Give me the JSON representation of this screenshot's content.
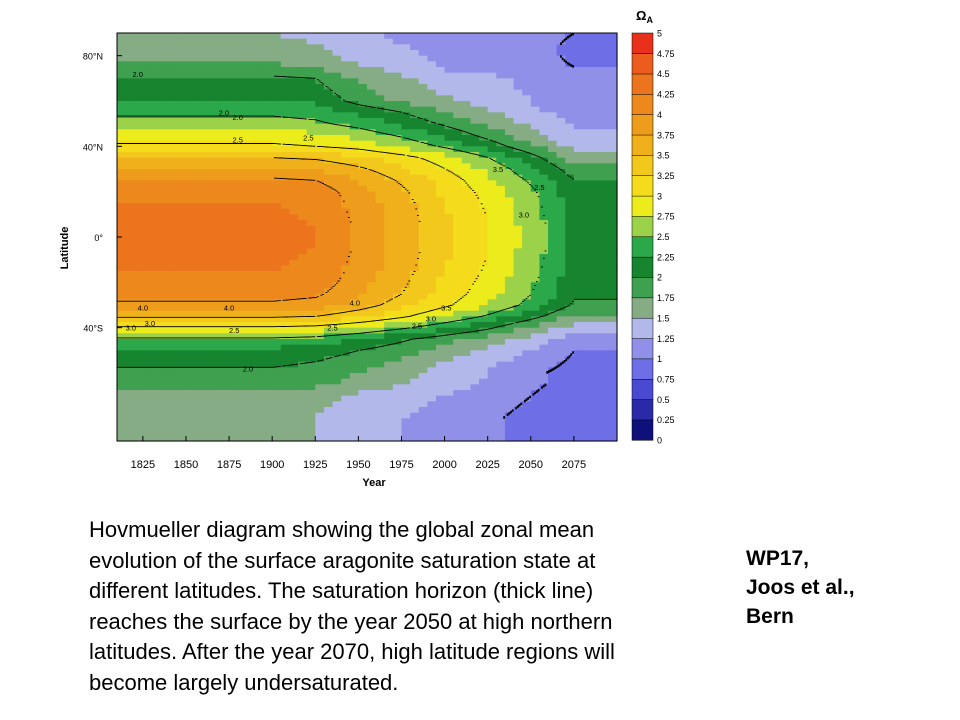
{
  "chart_data": {
    "type": "heatmap",
    "title": "",
    "xlabel": "Year",
    "ylabel": "Latitude",
    "xlim": [
      1810,
      2100
    ],
    "ylim": [
      -90,
      90
    ],
    "x_ticks": [
      1825,
      1850,
      1875,
      1900,
      1925,
      1950,
      1975,
      2000,
      2025,
      2050,
      2075
    ],
    "y_ticks": [
      {
        "value": 80,
        "label": "80°N"
      },
      {
        "value": 40,
        "label": "40°N"
      },
      {
        "value": 0,
        "label": "0°"
      },
      {
        "value": -40,
        "label": "40°S"
      }
    ],
    "colorbar": {
      "title": "Ω",
      "subscript": "A",
      "levels": [
        0,
        0.25,
        0.5,
        0.75,
        1,
        1.25,
        1.5,
        1.75,
        2,
        2.25,
        2.5,
        2.75,
        3,
        3.25,
        3.5,
        3.75,
        4,
        4.25,
        4.5,
        4.75,
        5
      ],
      "level_labels": [
        "0",
        "0.25",
        "0.5",
        "0.75",
        "1",
        "1.25",
        "1.5",
        "1.75",
        "2",
        "2.25",
        "2.5",
        "2.75",
        "3",
        "3.25",
        "3.5",
        "3.75",
        "4",
        "4.25",
        "4.5",
        "4.75",
        "5"
      ],
      "colors": [
        "#10107a",
        "#2a2aa8",
        "#4a4ad0",
        "#6e6ee6",
        "#9090e8",
        "#b2b8ea",
        "#86ac86",
        "#3fa04f",
        "#17852f",
        "#2aa84a",
        "#9bd24a",
        "#ecec1c",
        "#f4dc1c",
        "#f2c81c",
        "#f0b01c",
        "#ee9c1c",
        "#ec881c",
        "#ec741c",
        "#ec5c1c",
        "#e8301c"
      ]
    },
    "latitudes": [
      90,
      85,
      80,
      75,
      70,
      65,
      60,
      55,
      50,
      45,
      40,
      35,
      30,
      25,
      20,
      15,
      10,
      5,
      0,
      -5,
      -10,
      -15,
      -20,
      -25,
      -30,
      -35,
      -40,
      -45,
      -50,
      -55,
      -60,
      -65,
      -70,
      -75,
      -80,
      -85,
      -90
    ],
    "profile_labels": [
      "2.0",
      "2.5",
      "3.0",
      "3.5",
      "4.0"
    ],
    "profile_by_latitude": [
      [
        1.5,
        1.5,
        1.5,
        1.5,
        1.5,
        1.45,
        1.3,
        1.2,
        1.2,
        1.2,
        1.2,
        1.0
      ],
      [
        1.55,
        1.55,
        1.55,
        1.55,
        1.55,
        1.5,
        1.35,
        1.25,
        1.2,
        1.2,
        1.2,
        0.9
      ],
      [
        1.65,
        1.65,
        1.65,
        1.65,
        1.65,
        1.6,
        1.4,
        1.3,
        1.2,
        1.2,
        1.2,
        0.9
      ],
      [
        1.8,
        1.8,
        1.8,
        1.8,
        1.8,
        1.75,
        1.55,
        1.4,
        1.2,
        1.2,
        1.15,
        1.0
      ],
      [
        2.05,
        2.05,
        2.05,
        2.05,
        2.05,
        2.0,
        1.7,
        1.55,
        1.4,
        1.3,
        1.2,
        1.05
      ],
      [
        2.15,
        2.15,
        2.15,
        2.15,
        2.15,
        2.1,
        1.8,
        1.6,
        1.45,
        1.35,
        1.2,
        1.05
      ],
      [
        2.25,
        2.25,
        2.25,
        2.25,
        2.25,
        2.2,
        1.9,
        1.7,
        1.55,
        1.4,
        1.25,
        1.05
      ],
      [
        2.45,
        2.45,
        2.45,
        2.45,
        2.45,
        2.4,
        2.2,
        2.0,
        1.75,
        1.55,
        1.3,
        1.15
      ],
      [
        2.6,
        2.6,
        2.6,
        2.6,
        2.6,
        2.55,
        2.4,
        2.2,
        1.95,
        1.7,
        1.45,
        1.2
      ],
      [
        2.85,
        2.85,
        2.85,
        2.85,
        2.85,
        2.8,
        2.65,
        2.45,
        2.2,
        1.9,
        1.6,
        1.3
      ],
      [
        3.05,
        3.05,
        3.05,
        3.05,
        3.05,
        3.0,
        2.9,
        2.7,
        2.45,
        2.15,
        1.8,
        1.4
      ],
      [
        3.5,
        3.5,
        3.5,
        3.5,
        3.5,
        3.45,
        3.3,
        3.1,
        2.85,
        2.5,
        2.1,
        1.65
      ],
      [
        3.8,
        3.8,
        3.8,
        3.8,
        3.8,
        3.75,
        3.55,
        3.3,
        3.0,
        2.7,
        2.3,
        1.85
      ],
      [
        4.05,
        4.05,
        4.05,
        4.05,
        4.05,
        4.0,
        3.75,
        3.45,
        3.15,
        2.8,
        2.45,
        2.0
      ],
      [
        4.2,
        4.2,
        4.2,
        4.2,
        4.2,
        4.15,
        3.85,
        3.55,
        3.2,
        2.9,
        2.55,
        2.1
      ],
      [
        4.25,
        4.25,
        4.25,
        4.25,
        4.25,
        4.2,
        3.9,
        3.6,
        3.25,
        2.95,
        2.6,
        2.15
      ],
      [
        4.28,
        4.28,
        4.28,
        4.28,
        4.28,
        4.22,
        3.92,
        3.62,
        3.28,
        2.98,
        2.62,
        2.18
      ],
      [
        4.3,
        4.3,
        4.3,
        4.3,
        4.3,
        4.25,
        3.95,
        3.65,
        3.3,
        3.0,
        2.65,
        2.2
      ],
      [
        4.3,
        4.3,
        4.3,
        4.3,
        4.3,
        4.25,
        3.95,
        3.65,
        3.3,
        3.0,
        2.65,
        2.2
      ],
      [
        4.3,
        4.3,
        4.3,
        4.3,
        4.3,
        4.25,
        3.95,
        3.65,
        3.3,
        3.0,
        2.65,
        2.2
      ],
      [
        4.28,
        4.28,
        4.28,
        4.28,
        4.28,
        4.22,
        3.92,
        3.62,
        3.28,
        2.98,
        2.62,
        2.18
      ],
      [
        4.25,
        4.25,
        4.25,
        4.25,
        4.25,
        4.2,
        3.9,
        3.6,
        3.25,
        2.95,
        2.6,
        2.15
      ],
      [
        4.2,
        4.2,
        4.2,
        4.2,
        4.2,
        4.15,
        3.85,
        3.55,
        3.2,
        2.9,
        2.55,
        2.1
      ],
      [
        4.1,
        4.1,
        4.1,
        4.1,
        4.1,
        4.05,
        3.8,
        3.5,
        3.15,
        2.85,
        2.5,
        2.05
      ],
      [
        3.95,
        3.95,
        3.95,
        3.95,
        3.95,
        3.9,
        3.65,
        3.35,
        3.05,
        2.75,
        2.4,
        1.95
      ],
      [
        3.55,
        3.55,
        3.55,
        3.55,
        3.55,
        3.5,
        3.3,
        3.05,
        2.75,
        2.45,
        2.1,
        1.7
      ],
      [
        2.95,
        2.95,
        2.95,
        2.95,
        2.95,
        2.9,
        2.75,
        2.55,
        2.3,
        2.05,
        1.7,
        1.4
      ],
      [
        2.45,
        2.45,
        2.45,
        2.45,
        2.45,
        2.4,
        2.25,
        2.05,
        1.85,
        1.65,
        1.4,
        1.15
      ],
      [
        2.2,
        2.2,
        2.2,
        2.2,
        2.2,
        2.15,
        2.0,
        1.85,
        1.65,
        1.45,
        1.25,
        1.0
      ],
      [
        2.05,
        2.05,
        2.05,
        2.05,
        2.05,
        2.0,
        1.85,
        1.7,
        1.5,
        1.3,
        1.15,
        0.95
      ],
      [
        1.95,
        1.95,
        1.95,
        1.95,
        1.95,
        1.9,
        1.75,
        1.6,
        1.4,
        1.25,
        1.05,
        0.9
      ],
      [
        1.85,
        1.85,
        1.85,
        1.85,
        1.85,
        1.8,
        1.65,
        1.5,
        1.35,
        1.2,
        1.05,
        0.9
      ],
      [
        1.65,
        1.65,
        1.65,
        1.65,
        1.65,
        1.6,
        1.45,
        1.35,
        1.25,
        1.15,
        1.0,
        0.85
      ],
      [
        1.6,
        1.6,
        1.6,
        1.6,
        1.6,
        1.55,
        1.4,
        1.3,
        1.2,
        1.1,
        0.95,
        0.8
      ],
      [
        1.55,
        1.55,
        1.55,
        1.55,
        1.55,
        1.5,
        1.35,
        1.25,
        1.15,
        1.05,
        0.9,
        0.75
      ],
      [
        1.55,
        1.55,
        1.55,
        1.55,
        1.55,
        1.5,
        1.35,
        1.25,
        1.15,
        1.05,
        0.9,
        0.75
      ],
      [
        1.55,
        1.55,
        1.55,
        1.55,
        1.55,
        1.5,
        1.35,
        1.25,
        1.15,
        1.05,
        0.9,
        0.75
      ]
    ],
    "profile_years": [
      1810,
      1825,
      1850,
      1875,
      1900,
      1925,
      1950,
      1975,
      2000,
      2025,
      2050,
      2075
    ],
    "contour_labels": [
      {
        "text": "2.0",
        "x": 1822,
        "y": 72
      },
      {
        "text": "2.0",
        "x": 1872,
        "y": 55
      },
      {
        "text": "2.0",
        "x": 1880,
        "y": 53
      },
      {
        "text": "2.5",
        "x": 1880,
        "y": 43
      },
      {
        "text": "2.5",
        "x": 1921,
        "y": 44
      },
      {
        "text": "3.5",
        "x": 2031,
        "y": 30
      },
      {
        "text": "3.0",
        "x": 2046,
        "y": 10
      },
      {
        "text": "2.5",
        "x": 2055,
        "y": 22
      },
      {
        "text": "4.0",
        "x": 1825,
        "y": -31
      },
      {
        "text": "4.0",
        "x": 1875,
        "y": -31
      },
      {
        "text": "4.0",
        "x": 1948,
        "y": -29
      },
      {
        "text": "3.5",
        "x": 2001,
        "y": -31
      },
      {
        "text": "3.0",
        "x": 1829,
        "y": -38
      },
      {
        "text": "3.0",
        "x": 1992,
        "y": -36
      },
      {
        "text": "2.5",
        "x": 1878,
        "y": -41
      },
      {
        "text": "2.5",
        "x": 1935,
        "y": -40
      },
      {
        "text": "2.5",
        "x": 1984,
        "y": -39
      },
      {
        "text": "3.0",
        "x": 1818,
        "y": -40
      },
      {
        "text": "2.0",
        "x": 1886,
        "y": -58
      }
    ]
  },
  "caption": "Hovmueller diagram showing the global zonal mean evolution of the surface aragonite saturation state at different latitudes. The saturation horizon (thick line) reaches the surface by the year 2050 at high northern latitudes. After the year 2070, high latitude regions will become largely undersaturated.",
  "credit": {
    "line1": "WP17,",
    "line2": "Joos et al.,",
    "line3": "Bern"
  }
}
